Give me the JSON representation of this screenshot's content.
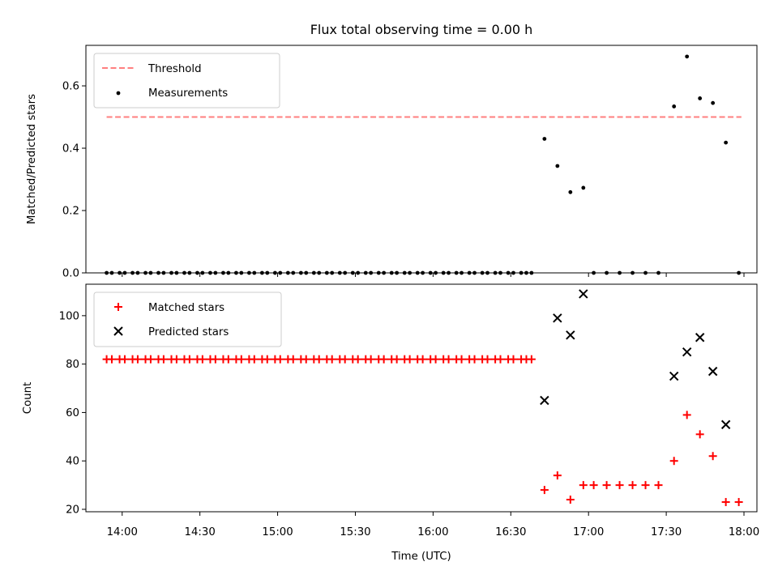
{
  "chart_data": {
    "title": "Flux total observing time = 0.00 h",
    "xlabel": "Time (UTC)",
    "x_tick_labels": [
      "14:00",
      "14:30",
      "15:00",
      "15:30",
      "16:00",
      "16:30",
      "17:00",
      "17:30",
      "18:00"
    ],
    "x_tick_values": [
      "14:00",
      "14:30",
      "15:00",
      "15:30",
      "16:00",
      "16:30",
      "17:00",
      "17:30",
      "18:00"
    ],
    "xlim": [
      "13:46",
      "18:05"
    ],
    "panels": [
      {
        "type": "scatter",
        "ylabel": "Matched/Predicted stars",
        "ylim": [
          0,
          0.73
        ],
        "y_ticks": [
          0.0,
          0.2,
          0.4,
          0.6
        ],
        "y_tick_labels": [
          "0.0",
          "0.2",
          "0.4",
          "0.6"
        ],
        "legend_position": "upper-left",
        "threshold": {
          "name": "Threshold",
          "value": 0.5,
          "x_range": [
            "13:54",
            "17:59"
          ],
          "color": "#ff7f7f"
        },
        "series": [
          {
            "name": "Measurements",
            "color": "#000000",
            "marker": "dot",
            "points": [
              [
                "13:54",
                0
              ],
              [
                "13:56",
                0
              ],
              [
                "13:59",
                0
              ],
              [
                "14:01",
                0
              ],
              [
                "14:04",
                0
              ],
              [
                "14:06",
                0
              ],
              [
                "14:09",
                0
              ],
              [
                "14:11",
                0
              ],
              [
                "14:14",
                0
              ],
              [
                "14:16",
                0
              ],
              [
                "14:19",
                0
              ],
              [
                "14:21",
                0
              ],
              [
                "14:24",
                0
              ],
              [
                "14:26",
                0
              ],
              [
                "14:29",
                0
              ],
              [
                "14:31",
                0
              ],
              [
                "14:34",
                0
              ],
              [
                "14:36",
                0
              ],
              [
                "14:39",
                0
              ],
              [
                "14:41",
                0
              ],
              [
                "14:44",
                0
              ],
              [
                "14:46",
                0
              ],
              [
                "14:49",
                0
              ],
              [
                "14:51",
                0
              ],
              [
                "14:54",
                0
              ],
              [
                "14:56",
                0
              ],
              [
                "14:59",
                0
              ],
              [
                "15:01",
                0
              ],
              [
                "15:04",
                0
              ],
              [
                "15:06",
                0
              ],
              [
                "15:09",
                0
              ],
              [
                "15:11",
                0
              ],
              [
                "15:14",
                0
              ],
              [
                "15:16",
                0
              ],
              [
                "15:19",
                0
              ],
              [
                "15:21",
                0
              ],
              [
                "15:24",
                0
              ],
              [
                "15:26",
                0
              ],
              [
                "15:29",
                0
              ],
              [
                "15:31",
                0
              ],
              [
                "15:34",
                0
              ],
              [
                "15:36",
                0
              ],
              [
                "15:39",
                0
              ],
              [
                "15:41",
                0
              ],
              [
                "15:44",
                0
              ],
              [
                "15:46",
                0
              ],
              [
                "15:49",
                0
              ],
              [
                "15:51",
                0
              ],
              [
                "15:54",
                0
              ],
              [
                "15:56",
                0
              ],
              [
                "15:59",
                0
              ],
              [
                "16:01",
                0
              ],
              [
                "16:04",
                0
              ],
              [
                "16:06",
                0
              ],
              [
                "16:09",
                0
              ],
              [
                "16:11",
                0
              ],
              [
                "16:14",
                0
              ],
              [
                "16:16",
                0
              ],
              [
                "16:19",
                0
              ],
              [
                "16:21",
                0
              ],
              [
                "16:24",
                0
              ],
              [
                "16:26",
                0
              ],
              [
                "16:29",
                0
              ],
              [
                "16:31",
                0
              ],
              [
                "16:34",
                0
              ],
              [
                "16:36",
                0
              ],
              [
                "16:38",
                0
              ],
              [
                "16:43",
                0.43
              ],
              [
                "16:48",
                0.343
              ],
              [
                "16:53",
                0.259
              ],
              [
                "16:58",
                0.273
              ],
              [
                "17:02",
                0
              ],
              [
                "17:07",
                0
              ],
              [
                "17:12",
                0
              ],
              [
                "17:17",
                0
              ],
              [
                "17:22",
                0
              ],
              [
                "17:27",
                0
              ],
              [
                "17:33",
                0.534
              ],
              [
                "17:38",
                0.694
              ],
              [
                "17:43",
                0.56
              ],
              [
                "17:48",
                0.545
              ],
              [
                "17:53",
                0.418
              ],
              [
                "17:58",
                0
              ]
            ]
          }
        ]
      },
      {
        "type": "scatter",
        "ylabel": "Count",
        "ylim": [
          19,
          113
        ],
        "y_ticks": [
          20,
          40,
          60,
          80,
          100
        ],
        "y_tick_labels": [
          "20",
          "40",
          "60",
          "80",
          "100"
        ],
        "legend_position": "upper-left",
        "series": [
          {
            "name": "Matched stars",
            "color": "#ff0000",
            "marker": "plus",
            "points": [
              [
                "13:54",
                82
              ],
              [
                "13:56",
                82
              ],
              [
                "13:59",
                82
              ],
              [
                "14:01",
                82
              ],
              [
                "14:04",
                82
              ],
              [
                "14:06",
                82
              ],
              [
                "14:09",
                82
              ],
              [
                "14:11",
                82
              ],
              [
                "14:14",
                82
              ],
              [
                "14:16",
                82
              ],
              [
                "14:19",
                82
              ],
              [
                "14:21",
                82
              ],
              [
                "14:24",
                82
              ],
              [
                "14:26",
                82
              ],
              [
                "14:29",
                82
              ],
              [
                "14:31",
                82
              ],
              [
                "14:34",
                82
              ],
              [
                "14:36",
                82
              ],
              [
                "14:39",
                82
              ],
              [
                "14:41",
                82
              ],
              [
                "14:44",
                82
              ],
              [
                "14:46",
                82
              ],
              [
                "14:49",
                82
              ],
              [
                "14:51",
                82
              ],
              [
                "14:54",
                82
              ],
              [
                "14:56",
                82
              ],
              [
                "14:59",
                82
              ],
              [
                "15:01",
                82
              ],
              [
                "15:04",
                82
              ],
              [
                "15:06",
                82
              ],
              [
                "15:09",
                82
              ],
              [
                "15:11",
                82
              ],
              [
                "15:14",
                82
              ],
              [
                "15:16",
                82
              ],
              [
                "15:19",
                82
              ],
              [
                "15:21",
                82
              ],
              [
                "15:24",
                82
              ],
              [
                "15:26",
                82
              ],
              [
                "15:29",
                82
              ],
              [
                "15:31",
                82
              ],
              [
                "15:34",
                82
              ],
              [
                "15:36",
                82
              ],
              [
                "15:39",
                82
              ],
              [
                "15:41",
                82
              ],
              [
                "15:44",
                82
              ],
              [
                "15:46",
                82
              ],
              [
                "15:49",
                82
              ],
              [
                "15:51",
                82
              ],
              [
                "15:54",
                82
              ],
              [
                "15:56",
                82
              ],
              [
                "15:59",
                82
              ],
              [
                "16:01",
                82
              ],
              [
                "16:04",
                82
              ],
              [
                "16:06",
                82
              ],
              [
                "16:09",
                82
              ],
              [
                "16:11",
                82
              ],
              [
                "16:14",
                82
              ],
              [
                "16:16",
                82
              ],
              [
                "16:19",
                82
              ],
              [
                "16:21",
                82
              ],
              [
                "16:24",
                82
              ],
              [
                "16:26",
                82
              ],
              [
                "16:29",
                82
              ],
              [
                "16:31",
                82
              ],
              [
                "16:34",
                82
              ],
              [
                "16:36",
                82
              ],
              [
                "16:38",
                82
              ],
              [
                "16:43",
                28
              ],
              [
                "16:48",
                34
              ],
              [
                "16:53",
                24
              ],
              [
                "16:58",
                30
              ],
              [
                "17:02",
                30
              ],
              [
                "17:07",
                30
              ],
              [
                "17:12",
                30
              ],
              [
                "17:17",
                30
              ],
              [
                "17:22",
                30
              ],
              [
                "17:27",
                30
              ],
              [
                "17:33",
                40
              ],
              [
                "17:38",
                59
              ],
              [
                "17:43",
                51
              ],
              [
                "17:48",
                42
              ],
              [
                "17:53",
                23
              ],
              [
                "17:58",
                23
              ]
            ]
          },
          {
            "name": "Predicted stars",
            "color": "#000000",
            "marker": "x",
            "points": [
              [
                "16:43",
                65
              ],
              [
                "16:48",
                99
              ],
              [
                "16:53",
                92
              ],
              [
                "16:58",
                109
              ],
              [
                "17:33",
                75
              ],
              [
                "17:38",
                85
              ],
              [
                "17:43",
                91
              ],
              [
                "17:48",
                77
              ],
              [
                "17:53",
                55
              ]
            ]
          }
        ]
      }
    ]
  }
}
